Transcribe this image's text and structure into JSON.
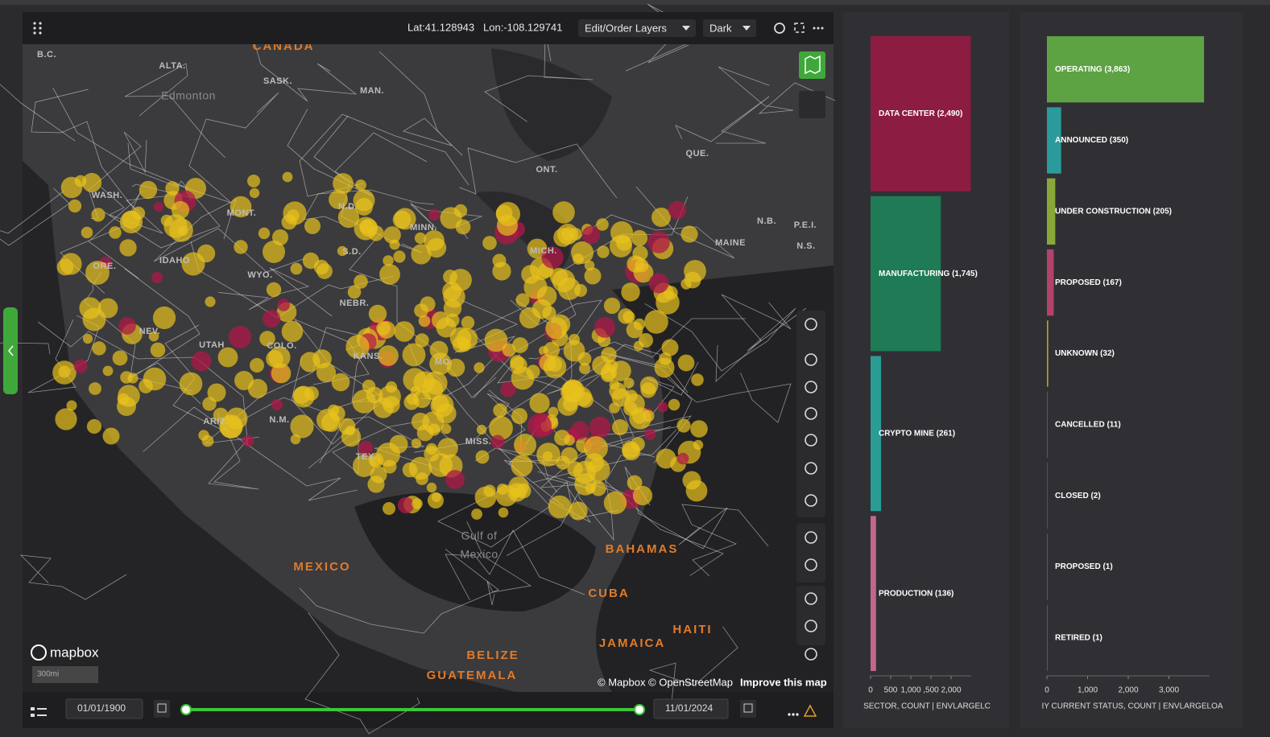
{
  "toolbar": {
    "lat": "Lat:41.128943",
    "lon": "Lon:-108.129741",
    "layers_button": "Edit/Order Layers",
    "theme_button": "Dark"
  },
  "map": {
    "labels": [
      "CANADA",
      "B.C.",
      "ALTA.",
      "SASK.",
      "MAN.",
      "Edmonton",
      "ONT.",
      "QUE.",
      "WASH.",
      "MONT.",
      "N.D.",
      "MINN.",
      "S.D.",
      "MICH.",
      "IDAHO",
      "ORE.",
      "WYO.",
      "NEBR.",
      "NEV.",
      "UTAH",
      "COLO.",
      "KANS.",
      "MO.",
      "N.M.",
      "ARIZ.",
      "TEX.",
      "MISS.",
      "N.B.",
      "P.E.I.",
      "N.S.",
      "MAINE",
      "Gulf of",
      "Mexico",
      "MEXICO",
      "BAHAMAS",
      "CUBA",
      "HAITI",
      "JAMAICA",
      "BELIZE",
      "GUATEMALA"
    ],
    "logo": "mapbox",
    "scale": "300mi",
    "attribution": "© Mapbox © OpenStreetMap",
    "improve": "Improve this map"
  },
  "timeline": {
    "start": "01/01/1900",
    "end": "11/01/2024"
  },
  "charts": [
    {
      "type": "bar",
      "orientation": "horizontal",
      "categories": [
        "DATA CENTER",
        "MANUFACTURING",
        "CRYPTO MINE",
        "PRODUCTION"
      ],
      "values": [
        2490,
        1745,
        261,
        136
      ],
      "value_labels": [
        "DATA CENTER (2,490)",
        "MANUFACTURING (1,745)",
        "CRYPTO MINE (261)",
        "PRODUCTION (136)"
      ],
      "colors": [
        "#8c1c42",
        "#1f7a56",
        "#2a9c94",
        "#c4668a"
      ],
      "xlim": [
        0,
        2500
      ],
      "xticks": [
        0,
        500,
        {
          "value": 1000,
          "label": "1,000"
        },
        {
          "value": 1500,
          "label": ",500"
        },
        {
          "value": 2000,
          "label": "2,000"
        }
      ],
      "xlabel": "SECTOR, COUNT | ENVLARGELC"
    },
    {
      "type": "bar",
      "orientation": "horizontal",
      "categories": [
        "OPERATING",
        "ANNOUNCED",
        "UNDER CONSTRUCTION",
        "PROPOSED",
        "UNKNOWN",
        "CANCELLED",
        "CLOSED",
        "PROPOSED",
        "RETIRED"
      ],
      "values": [
        3863,
        350,
        205,
        167,
        32,
        11,
        2,
        1,
        1
      ],
      "value_labels": [
        "OPERATING (3,863)",
        "ANNOUNCED (350)",
        "UNDER CONSTRUCTION (205)",
        "PROPOSED (167)",
        "UNKNOWN (32)",
        "CANCELLED (11)",
        "CLOSED (2)",
        "PROPOSED (1)",
        "RETIRED (1)"
      ],
      "colors": [
        "#5da243",
        "#2a9a9a",
        "#8aa83a",
        "#b3436a",
        "#c89c2c",
        "#6a7a8a",
        "#7a6a8a",
        "#6a8a7a",
        "#8a7a6a"
      ],
      "xlim": [
        0,
        4000
      ],
      "xticks": [
        0,
        {
          "value": 1000,
          "label": "1,000"
        },
        {
          "value": 2000,
          "label": "2,000"
        },
        {
          "value": 3000,
          "label": "3,000"
        }
      ],
      "xlabel": "IY CURRENT STATUS, COUNT | ENVLARGELOA"
    }
  ]
}
